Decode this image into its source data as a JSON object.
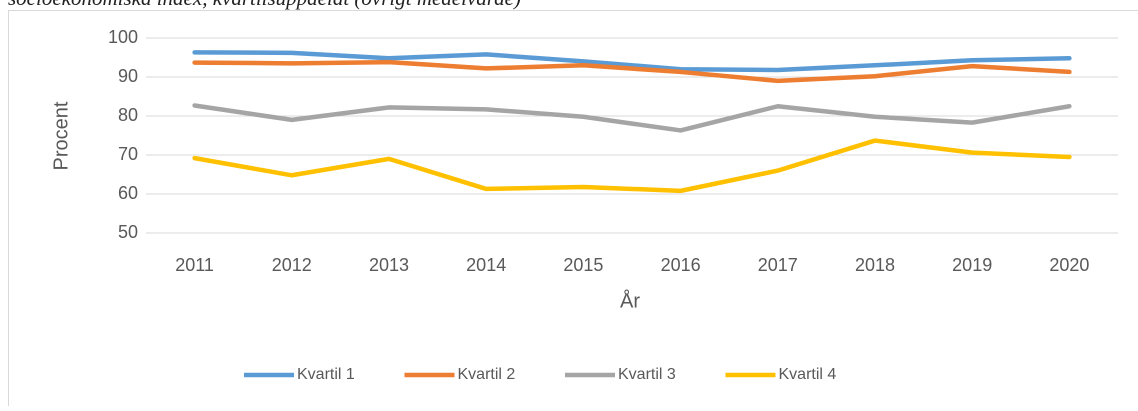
{
  "chart_data": {
    "type": "line",
    "title": "socioekonomiska index, kvartilsuppdelat (övrigt medelvärde)",
    "xlabel": "År",
    "ylabel": "Procent",
    "categories": [
      "2011",
      "2012",
      "2013",
      "2014",
      "2015",
      "2016",
      "2017",
      "2018",
      "2019",
      "2020"
    ],
    "series": [
      {
        "name": "Kvartil 1",
        "color": "#5b9bd5",
        "values": [
          96.3,
          96.2,
          94.8,
          95.8,
          94.0,
          92.0,
          91.8,
          93.0,
          94.3,
          94.8
        ]
      },
      {
        "name": "Kvartil 2",
        "color": "#ed7d31",
        "values": [
          93.7,
          93.5,
          93.8,
          92.2,
          93.0,
          91.3,
          89.0,
          90.2,
          92.8,
          91.3
        ]
      },
      {
        "name": "Kvartil 3",
        "color": "#a5a5a5",
        "values": [
          82.7,
          79.0,
          82.2,
          81.7,
          79.8,
          76.3,
          82.5,
          79.8,
          78.3,
          82.5
        ]
      },
      {
        "name": "Kvartil 4",
        "color": "#ffc000",
        "values": [
          69.2,
          64.8,
          69.0,
          61.3,
          61.8,
          60.8,
          66.0,
          73.7,
          70.6,
          69.5
        ]
      }
    ],
    "ylim": [
      50,
      100
    ],
    "yticks": [
      50,
      60,
      70,
      80,
      90,
      100
    ],
    "grid": true,
    "legend": "bottom"
  }
}
